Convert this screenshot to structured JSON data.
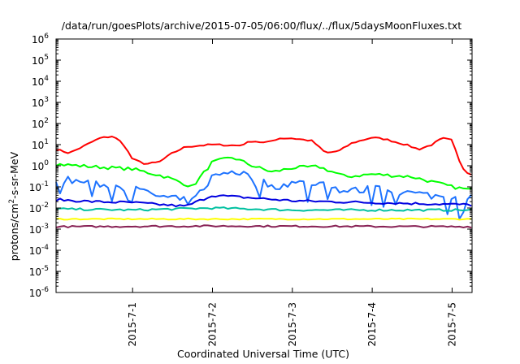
{
  "chart_data": {
    "type": "line",
    "title": "/data/run/goesPlots/archive/2015-07-05/06:00/flux/../flux/5daysMoonFluxes.txt",
    "xlabel": "Coordinated Universal Time (UTC)",
    "ylabel_main": "protons/cm",
    "ylabel_sup": "2",
    "ylabel_rest": "-s-sr-MeV",
    "y_scale": "log",
    "ylim": [
      1e-06,
      1000000.0
    ],
    "y_ticks": [
      {
        "base": "10",
        "exp": "-6"
      },
      {
        "base": "10",
        "exp": "-5"
      },
      {
        "base": "10",
        "exp": "-4"
      },
      {
        "base": "10",
        "exp": "-3"
      },
      {
        "base": "10",
        "exp": "-2"
      },
      {
        "base": "10",
        "exp": "-1"
      },
      {
        "base": "10",
        "exp": "0"
      },
      {
        "base": "10",
        "exp": "1"
      },
      {
        "base": "10",
        "exp": "2"
      },
      {
        "base": "10",
        "exp": "3"
      },
      {
        "base": "10",
        "exp": "4"
      },
      {
        "base": "10",
        "exp": "5"
      },
      {
        "base": "10",
        "exp": "6"
      }
    ],
    "x_start": "2015-06-30T01:00",
    "x_end": "2015-07-05T06:00",
    "x_ticks": [
      {
        "label": "2015-7-1",
        "date": "2015-07-01T00:00"
      },
      {
        "label": "2015-7-2",
        "date": "2015-07-02T00:00"
      },
      {
        "label": "2015-7-3",
        "date": "2015-07-03T00:00"
      },
      {
        "label": "2015-7-4",
        "date": "2015-07-04T00:00"
      },
      {
        "label": "2015-7-5",
        "date": "2015-07-05T00:00"
      }
    ],
    "grid": false,
    "series": [
      {
        "color": "#ff0000",
        "noise": 0.04,
        "points": [
          [
            "2015-06-30T01:00",
            6
          ],
          [
            "2015-06-30T05:00",
            4
          ],
          [
            "2015-06-30T09:00",
            8
          ],
          [
            "2015-06-30T14:00",
            20
          ],
          [
            "2015-06-30T18:00",
            25
          ],
          [
            "2015-06-30T21:00",
            12
          ],
          [
            "2015-07-01T00:00",
            2
          ],
          [
            "2015-07-01T04:00",
            1.2
          ],
          [
            "2015-07-01T08:00",
            1.5
          ],
          [
            "2015-07-01T12:00",
            4
          ],
          [
            "2015-07-01T16:00",
            8
          ],
          [
            "2015-07-02T00:00",
            10
          ],
          [
            "2015-07-02T08:00",
            9
          ],
          [
            "2015-07-02T12:00",
            15
          ],
          [
            "2015-07-02T16:00",
            12
          ],
          [
            "2015-07-02T20:00",
            20
          ],
          [
            "2015-07-03T00:00",
            20
          ],
          [
            "2015-07-03T06:00",
            15
          ],
          [
            "2015-07-03T10:00",
            4
          ],
          [
            "2015-07-03T14:00",
            5
          ],
          [
            "2015-07-03T18:00",
            12
          ],
          [
            "2015-07-04T00:00",
            22
          ],
          [
            "2015-07-04T04:00",
            18
          ],
          [
            "2015-07-04T10:00",
            10
          ],
          [
            "2015-07-04T14:00",
            6
          ],
          [
            "2015-07-04T18:00",
            10
          ],
          [
            "2015-07-04T21:00",
            20
          ],
          [
            "2015-07-05T00:00",
            16
          ],
          [
            "2015-07-05T02:00",
            2
          ],
          [
            "2015-07-05T04:00",
            0.5
          ],
          [
            "2015-07-05T06:00",
            0.4
          ]
        ]
      },
      {
        "color": "#00ff00",
        "noise": 0.08,
        "points": [
          [
            "2015-06-30T01:00",
            1.2
          ],
          [
            "2015-06-30T12:00",
            0.9
          ],
          [
            "2015-07-01T00:00",
            0.7
          ],
          [
            "2015-07-01T10:00",
            0.3
          ],
          [
            "2015-07-01T18:00",
            0.1
          ],
          [
            "2015-07-02T00:00",
            1.5
          ],
          [
            "2015-07-02T06:00",
            2.5
          ],
          [
            "2015-07-02T12:00",
            1
          ],
          [
            "2015-07-02T18:00",
            0.5
          ],
          [
            "2015-07-03T00:00",
            0.8
          ],
          [
            "2015-07-03T08:00",
            0.9
          ],
          [
            "2015-07-03T16:00",
            0.3
          ],
          [
            "2015-07-04T00:00",
            0.4
          ],
          [
            "2015-07-04T12:00",
            0.3
          ],
          [
            "2015-07-05T00:00",
            0.1
          ],
          [
            "2015-07-05T06:00",
            0.07
          ]
        ]
      },
      {
        "color": "#1e73ff",
        "noise": 0.18,
        "points": [
          [
            "2015-06-30T01:00",
            0.25
          ],
          [
            "2015-06-30T12:00",
            0.15
          ],
          [
            "2015-07-01T00:00",
            0.08
          ],
          [
            "2015-07-01T10:00",
            0.03
          ],
          [
            "2015-07-01T18:00",
            0.02
          ],
          [
            "2015-07-02T00:00",
            0.3
          ],
          [
            "2015-07-02T06:00",
            0.6
          ],
          [
            "2015-07-02T12:00",
            0.3
          ],
          [
            "2015-07-02T18:00",
            0.1
          ],
          [
            "2015-07-03T00:00",
            0.15
          ],
          [
            "2015-07-03T08:00",
            0.15
          ],
          [
            "2015-07-03T16:00",
            0.06
          ],
          [
            "2015-07-04T00:00",
            0.08
          ],
          [
            "2015-07-04T12:00",
            0.05
          ],
          [
            "2015-07-05T00:00",
            0.03
          ],
          [
            "2015-07-05T06:00",
            0.03
          ]
        ]
      },
      {
        "color": "#0000e0",
        "noise": 0.06,
        "points": [
          [
            "2015-06-30T01:00",
            0.025
          ],
          [
            "2015-06-30T12:00",
            0.02
          ],
          [
            "2015-07-01T00:00",
            0.018
          ],
          [
            "2015-07-01T16:00",
            0.012
          ],
          [
            "2015-07-02T00:00",
            0.04
          ],
          [
            "2015-07-02T12:00",
            0.03
          ],
          [
            "2015-07-03T00:00",
            0.022
          ],
          [
            "2015-07-04T00:00",
            0.018
          ],
          [
            "2015-07-05T00:00",
            0.015
          ],
          [
            "2015-07-05T06:00",
            0.014
          ]
        ]
      },
      {
        "color": "#00c0a0",
        "noise": 0.05,
        "points": [
          [
            "2015-06-30T01:00",
            0.009
          ],
          [
            "2015-07-01T00:00",
            0.008
          ],
          [
            "2015-07-02T00:00",
            0.01
          ],
          [
            "2015-07-03T00:00",
            0.008
          ],
          [
            "2015-07-04T00:00",
            0.008
          ],
          [
            "2015-07-05T06:00",
            0.008
          ]
        ]
      },
      {
        "color": "#ffff00",
        "noise": 0.03,
        "points": [
          [
            "2015-06-30T01:00",
            0.003
          ],
          [
            "2015-07-02T00:00",
            0.003
          ],
          [
            "2015-07-05T06:00",
            0.003
          ]
        ]
      },
      {
        "color": "#882255",
        "noise": 0.04,
        "points": [
          [
            "2015-06-30T01:00",
            0.0013
          ],
          [
            "2015-07-02T00:00",
            0.0014
          ],
          [
            "2015-07-05T06:00",
            0.0013
          ]
        ]
      }
    ]
  }
}
